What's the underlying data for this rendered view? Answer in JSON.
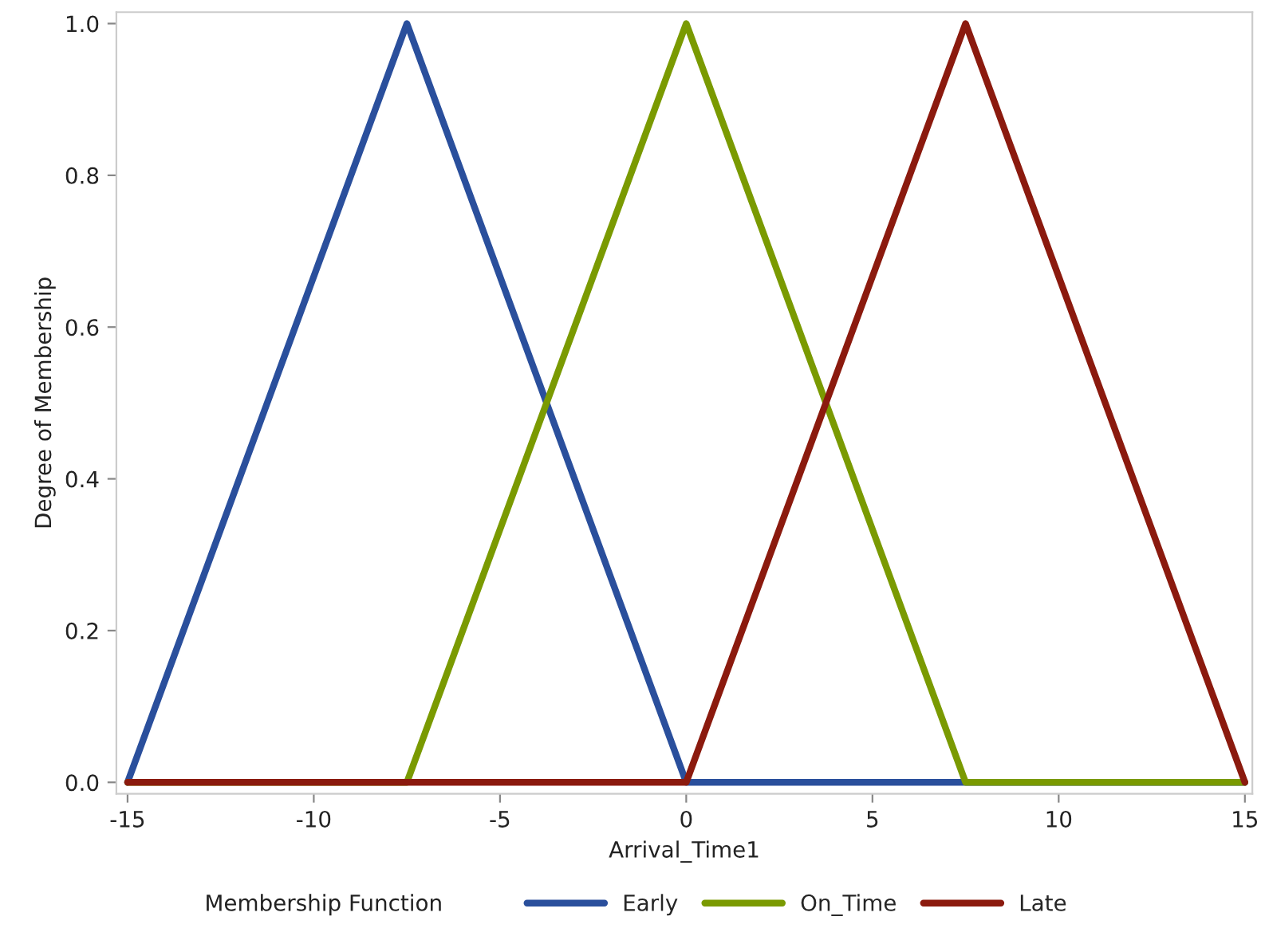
{
  "chart_data": {
    "type": "line",
    "xlabel": "Arrival_Time1",
    "ylabel": "Degree of Membership",
    "legend_title": "Membership Function",
    "series": [
      {
        "name": "Early",
        "color": "#2a4f9c",
        "x": [
          -15,
          -7.5,
          0,
          15
        ],
        "values": [
          0,
          1,
          0,
          0
        ]
      },
      {
        "name": "On_Time",
        "color": "#7a9a01",
        "x": [
          -15,
          -7.5,
          0,
          7.5,
          15
        ],
        "values": [
          0,
          0,
          1,
          0,
          0
        ]
      },
      {
        "name": "Late",
        "color": "#8b1a0e",
        "x": [
          -15,
          0,
          7.5,
          15
        ],
        "values": [
          0,
          0,
          1,
          0
        ]
      }
    ],
    "xlim": [
      -15.3,
      15.2
    ],
    "ylim": [
      -0.015,
      1.015
    ],
    "xticks": [
      -15,
      -10,
      -5,
      0,
      5,
      10,
      15
    ],
    "yticks": [
      {
        "value": 0,
        "label": "0.0"
      },
      {
        "value": 0.2,
        "label": "0.2"
      },
      {
        "value": 0.4,
        "label": "0.4"
      },
      {
        "value": 0.6,
        "label": "0.6"
      },
      {
        "value": 0.8,
        "label": "0.8"
      },
      {
        "value": 1,
        "label": "1.0"
      }
    ],
    "grid": false,
    "legend": "bottom",
    "marker": "none",
    "line_style": "solid"
  }
}
